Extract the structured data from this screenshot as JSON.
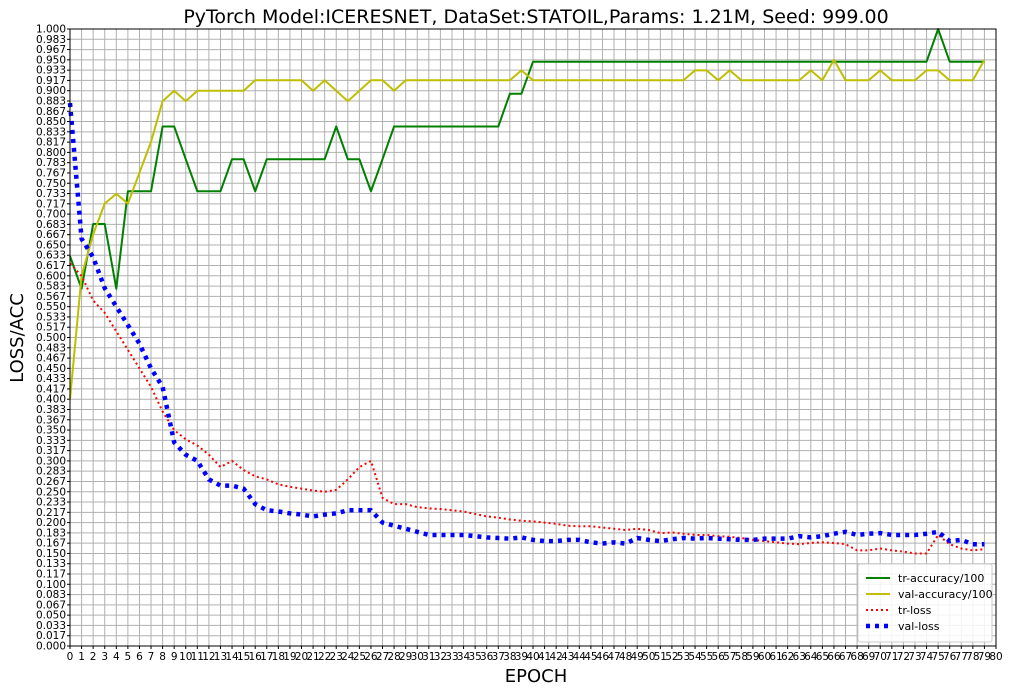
{
  "chart_data": {
    "type": "line",
    "title": "PyTorch Model:ICERESNET, DataSet:STATOIL,Params: 1.21M, Seed: 999.00",
    "xlabel": "EPOCH",
    "ylabel": "LOSS/ACC",
    "xlim": [
      0,
      80
    ],
    "ylim": [
      0,
      1
    ],
    "grid": true,
    "legend_position": "bottom-right",
    "x_ticks": [
      "0",
      "1",
      "2",
      "3",
      "4",
      "5",
      "6",
      "7",
      "8",
      "9",
      "10",
      "11",
      "12",
      "13",
      "14",
      "15",
      "16",
      "17",
      "18",
      "19",
      "20",
      "21",
      "22",
      "23",
      "24",
      "25",
      "26",
      "27",
      "28",
      "29",
      "30",
      "31",
      "32",
      "33",
      "34",
      "35",
      "36",
      "37",
      "38",
      "39",
      "40",
      "41",
      "42",
      "43",
      "44",
      "45",
      "46",
      "47",
      "48",
      "49",
      "50",
      "51",
      "52",
      "53",
      "54",
      "55",
      "56",
      "57",
      "58",
      "59",
      "60",
      "61",
      "62",
      "63",
      "64",
      "65",
      "66",
      "67",
      "68",
      "69",
      "70",
      "71",
      "72",
      "73",
      "74",
      "75",
      "76",
      "77",
      "78",
      "79",
      "80"
    ],
    "y_ticks": [
      "0.000",
      "0.017",
      "0.033",
      "0.050",
      "0.067",
      "0.083",
      "0.100",
      "0.117",
      "0.133",
      "0.150",
      "0.167",
      "0.183",
      "0.200",
      "0.217",
      "0.233",
      "0.250",
      "0.267",
      "0.283",
      "0.300",
      "0.317",
      "0.333",
      "0.350",
      "0.367",
      "0.383",
      "0.400",
      "0.417",
      "0.433",
      "0.450",
      "0.467",
      "0.483",
      "0.500",
      "0.517",
      "0.533",
      "0.550",
      "0.567",
      "0.583",
      "0.600",
      "0.617",
      "0.633",
      "0.650",
      "0.667",
      "0.683",
      "0.700",
      "0.717",
      "0.733",
      "0.750",
      "0.767",
      "0.783",
      "0.800",
      "0.817",
      "0.833",
      "0.850",
      "0.867",
      "0.883",
      "0.900",
      "0.917",
      "0.933",
      "0.950",
      "0.967",
      "0.983",
      "1.000"
    ],
    "series": [
      {
        "name": "tr-accuracy/100",
        "color": "#008000",
        "style": "solid",
        "values": [
          0.632,
          0.579,
          0.684,
          0.684,
          0.579,
          0.737,
          0.737,
          0.737,
          0.842,
          0.842,
          0.789,
          0.737,
          0.737,
          0.737,
          0.789,
          0.789,
          0.737,
          0.789,
          0.789,
          0.789,
          0.789,
          0.789,
          0.789,
          0.842,
          0.789,
          0.789,
          0.737,
          0.789,
          0.842,
          0.842,
          0.842,
          0.842,
          0.842,
          0.842,
          0.842,
          0.842,
          0.842,
          0.842,
          0.895,
          0.895,
          0.947,
          0.947,
          0.947,
          0.947,
          0.947,
          0.947,
          0.947,
          0.947,
          0.947,
          0.947,
          0.947,
          0.947,
          0.947,
          0.947,
          0.947,
          0.947,
          0.947,
          0.947,
          0.947,
          0.947,
          0.947,
          0.947,
          0.947,
          0.947,
          0.947,
          0.947,
          0.947,
          0.947,
          0.947,
          0.947,
          0.947,
          0.947,
          0.947,
          0.947,
          0.947,
          1.0,
          0.947,
          0.947,
          0.947,
          0.947
        ]
      },
      {
        "name": "val-accuracy/100",
        "color": "#bfbf00",
        "style": "solid",
        "values": [
          0.4,
          0.6,
          0.667,
          0.717,
          0.733,
          0.717,
          0.767,
          0.817,
          0.883,
          0.9,
          0.883,
          0.9,
          0.9,
          0.9,
          0.9,
          0.9,
          0.917,
          0.917,
          0.917,
          0.917,
          0.917,
          0.9,
          0.917,
          0.9,
          0.883,
          0.9,
          0.917,
          0.917,
          0.9,
          0.917,
          0.917,
          0.917,
          0.917,
          0.917,
          0.917,
          0.917,
          0.917,
          0.917,
          0.917,
          0.933,
          0.917,
          0.917,
          0.917,
          0.917,
          0.917,
          0.917,
          0.917,
          0.917,
          0.917,
          0.917,
          0.917,
          0.917,
          0.917,
          0.917,
          0.933,
          0.933,
          0.917,
          0.933,
          0.917,
          0.917,
          0.917,
          0.917,
          0.917,
          0.917,
          0.933,
          0.917,
          0.95,
          0.917,
          0.917,
          0.917,
          0.933,
          0.917,
          0.917,
          0.917,
          0.933,
          0.933,
          0.917,
          0.917,
          0.917,
          0.95
        ]
      },
      {
        "name": "tr-loss",
        "color": "#ff0000",
        "style": "dotted",
        "values": [
          0.62,
          0.6,
          0.56,
          0.54,
          0.51,
          0.48,
          0.45,
          0.42,
          0.38,
          0.35,
          0.335,
          0.325,
          0.31,
          0.29,
          0.3,
          0.285,
          0.275,
          0.27,
          0.262,
          0.258,
          0.255,
          0.252,
          0.25,
          0.253,
          0.27,
          0.29,
          0.3,
          0.24,
          0.23,
          0.23,
          0.225,
          0.223,
          0.222,
          0.22,
          0.218,
          0.214,
          0.21,
          0.208,
          0.205,
          0.203,
          0.202,
          0.2,
          0.198,
          0.195,
          0.194,
          0.194,
          0.192,
          0.19,
          0.188,
          0.19,
          0.188,
          0.183,
          0.184,
          0.182,
          0.18,
          0.18,
          0.178,
          0.177,
          0.175,
          0.172,
          0.17,
          0.168,
          0.166,
          0.165,
          0.167,
          0.168,
          0.167,
          0.165,
          0.155,
          0.155,
          0.158,
          0.155,
          0.153,
          0.15,
          0.15,
          0.18,
          0.165,
          0.158,
          0.155,
          0.157
        ]
      },
      {
        "name": "val-loss",
        "color": "#0000ff",
        "style": "dashed",
        "values": [
          0.88,
          0.66,
          0.63,
          0.58,
          0.55,
          0.52,
          0.49,
          0.45,
          0.42,
          0.33,
          0.31,
          0.3,
          0.27,
          0.26,
          0.26,
          0.255,
          0.23,
          0.22,
          0.218,
          0.215,
          0.213,
          0.21,
          0.213,
          0.215,
          0.22,
          0.22,
          0.22,
          0.2,
          0.195,
          0.19,
          0.185,
          0.18,
          0.18,
          0.18,
          0.18,
          0.178,
          0.176,
          0.175,
          0.174,
          0.176,
          0.172,
          0.17,
          0.17,
          0.172,
          0.172,
          0.168,
          0.166,
          0.168,
          0.166,
          0.175,
          0.172,
          0.17,
          0.173,
          0.175,
          0.174,
          0.175,
          0.174,
          0.173,
          0.172,
          0.172,
          0.174,
          0.174,
          0.174,
          0.178,
          0.176,
          0.178,
          0.182,
          0.185,
          0.18,
          0.182,
          0.183,
          0.18,
          0.18,
          0.18,
          0.182,
          0.185,
          0.17,
          0.172,
          0.165,
          0.165
        ]
      }
    ]
  }
}
